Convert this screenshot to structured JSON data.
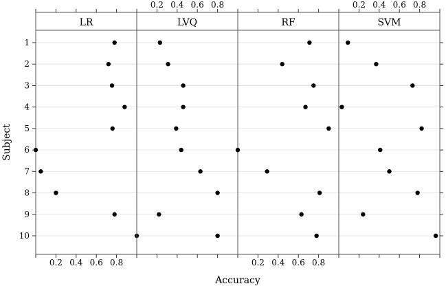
{
  "chart_data": {
    "type": "scatter",
    "title": "",
    "xlabel": "Accuracy",
    "ylabel": "Subject",
    "xlim": [
      0,
      1
    ],
    "x_ticks": [
      "0.2",
      "0.4",
      "0.6",
      "0.8"
    ],
    "x_tick_values": [
      0.2,
      0.4,
      0.6,
      0.8
    ],
    "categories": [
      "1",
      "2",
      "3",
      "4",
      "5",
      "6",
      "7",
      "8",
      "9",
      "10"
    ],
    "grid": true,
    "panels": [
      {
        "name": "LR",
        "values": [
          0.78,
          0.72,
          0.755,
          0.88,
          0.76,
          0.0,
          0.05,
          0.2,
          0.78,
          1.0
        ]
      },
      {
        "name": "LVQ",
        "values": [
          0.23,
          0.31,
          0.46,
          0.46,
          0.39,
          0.44,
          0.63,
          0.8,
          0.22,
          0.8
        ]
      },
      {
        "name": "RF",
        "values": [
          0.71,
          0.44,
          0.75,
          0.67,
          0.9,
          0.0,
          0.29,
          0.81,
          0.63,
          0.78
        ]
      },
      {
        "name": "SVM",
        "values": [
          0.09,
          0.37,
          0.73,
          0.03,
          0.82,
          0.41,
          0.5,
          0.78,
          0.24,
          0.96
        ]
      }
    ]
  }
}
